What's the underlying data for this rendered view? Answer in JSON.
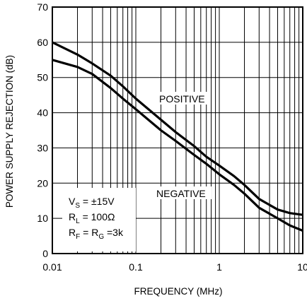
{
  "chart_data": {
    "type": "line",
    "title": "",
    "xlabel": "FREQUENCY (MHz)",
    "ylabel": "POWER SUPPLY REJECTION (dB)",
    "xscale": "log",
    "xlim": [
      0.01,
      10
    ],
    "ylim": [
      0,
      70
    ],
    "grid": true,
    "x_ticks": [
      {
        "value": 0.01,
        "label": "0.01"
      },
      {
        "value": 0.1,
        "label": "0.1"
      },
      {
        "value": 1,
        "label": "1"
      },
      {
        "value": 10,
        "label": "10"
      }
    ],
    "y_ticks": [
      {
        "value": 0,
        "label": "0"
      },
      {
        "value": 10,
        "label": "10"
      },
      {
        "value": 20,
        "label": "20"
      },
      {
        "value": 30,
        "label": "30"
      },
      {
        "value": 40,
        "label": "40"
      },
      {
        "value": 50,
        "label": "50"
      },
      {
        "value": 60,
        "label": "60"
      },
      {
        "value": 70,
        "label": "70"
      }
    ],
    "series": [
      {
        "name": "POSITIVE",
        "x": [
          0.01,
          0.02,
          0.03,
          0.05,
          0.07,
          0.1,
          0.2,
          0.3,
          0.5,
          0.7,
          1,
          1.5,
          2,
          3,
          5,
          7,
          10
        ],
        "y": [
          60,
          56.5,
          54,
          50.5,
          47.5,
          44,
          38,
          34.5,
          30.5,
          27.5,
          25,
          22,
          19.5,
          15.5,
          12.5,
          11.5,
          11
        ]
      },
      {
        "name": "NEGATIVE",
        "x": [
          0.01,
          0.02,
          0.03,
          0.05,
          0.07,
          0.1,
          0.2,
          0.3,
          0.5,
          0.7,
          1,
          1.5,
          2,
          3,
          5,
          7,
          10
        ],
        "y": [
          55,
          53,
          51,
          47,
          44,
          41,
          35,
          32,
          28,
          25.5,
          22.5,
          19.5,
          17,
          13,
          10,
          8,
          6.5
        ]
      }
    ],
    "annotations": {
      "conditions": [
        {
          "base": "V",
          "sub": "S",
          "rest": " = ±15V"
        },
        {
          "base": "R",
          "sub": "L",
          "rest": " = 100Ω"
        },
        {
          "base": "R",
          "sub": "F",
          "mid": " = R",
          "sub2": "G",
          "rest": " =3k"
        }
      ]
    }
  }
}
